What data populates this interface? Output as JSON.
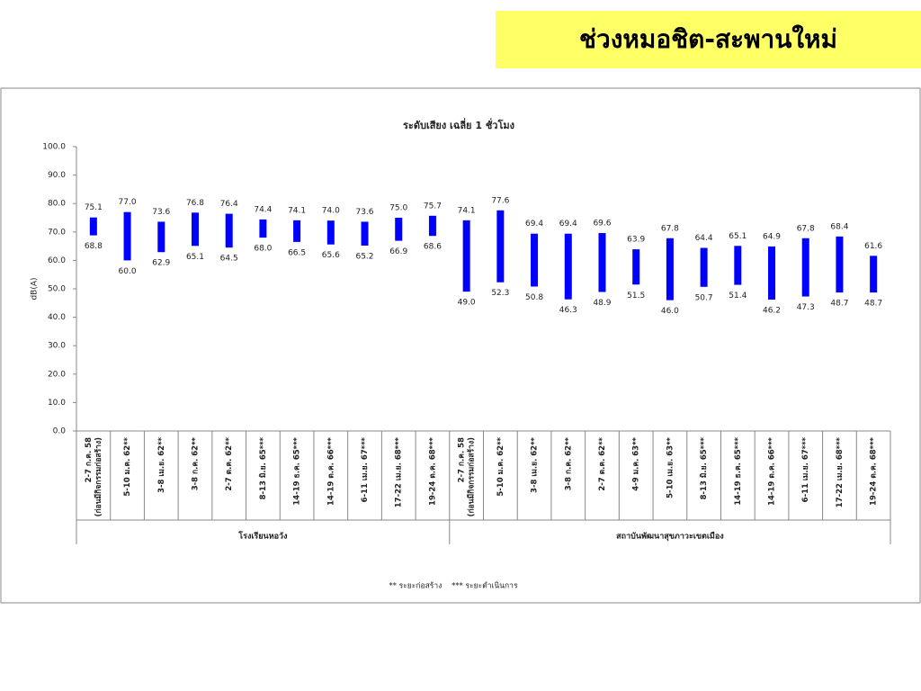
{
  "header": {
    "title": "ช่วงหมอชิต-สะพานใหม่"
  },
  "chart_data": {
    "type": "range_bar",
    "title": "ระดับเสียง เฉลี่ย 1 ชั่วโมง",
    "y_label": "dB(A)",
    "ylim": [
      0,
      100
    ],
    "yticks": [
      {
        "value": 0,
        "label": "0.0"
      },
      {
        "value": 10,
        "label": "10.0"
      },
      {
        "value": 20,
        "label": "20.0"
      },
      {
        "value": 30,
        "label": "30.0"
      },
      {
        "value": 40,
        "label": "40.0"
      },
      {
        "value": 50,
        "label": "50.0"
      },
      {
        "value": 60,
        "label": "60.0"
      },
      {
        "value": 70,
        "label": "70.0"
      },
      {
        "value": 80,
        "label": "80.0"
      },
      {
        "value": 90,
        "label": "90.0"
      },
      {
        "value": 100,
        "label": "100.0"
      }
    ],
    "color": "#0000ff",
    "groups": [
      {
        "label": "โรงเรียนหอวัง",
        "categories": [
          [
            "2-7 ก.ค. 58",
            "(ก่อนมีกิจกรรมก่อสร้าง)"
          ],
          "5-10 ม.ค. 62**",
          "3-8 เม.ย. 62**",
          "3-8 ก.ค. 62**",
          "2-7 ต.ค. 62**",
          "8-13 มิ.ย. 65***",
          "14-19 ธ.ค. 65***",
          "14-19 ต.ค. 66***",
          "6-11 เม.ย. 67***",
          "17-22 เม.ย. 68***",
          "19-24 ต.ค. 68***"
        ]
      },
      {
        "label": "สถาบันพัฒนาสุขภาวะเขตเมือง",
        "categories": [
          [
            "2-7 ก.ค. 58",
            "(ก่อนมีกิจกรรมก่อสร้าง)"
          ],
          "5-10 ม.ค. 62**",
          "3-8 เม.ย. 62**",
          "3-8 ก.ค. 62**",
          "2-7 ต.ค. 62**",
          "4-9 ม.ค. 63**",
          "5-10 เม.ย. 63**",
          "8-13 มิ.ย. 65***",
          "14-19 ธ.ค. 65***",
          "14-19 ต.ค. 66***",
          "6-11 เม.ย. 67***",
          "17-22 เม.ย. 68***",
          "19-24 ต.ค. 68***"
        ]
      }
    ],
    "high": {
      "values": [
        75.1,
        77.0,
        73.6,
        76.8,
        76.4,
        74.4,
        74.1,
        74.0,
        73.6,
        75.0,
        75.7,
        74.1,
        77.6,
        69.4,
        69.4,
        69.6,
        63.9,
        67.8,
        64.4,
        65.1,
        64.9,
        67.8,
        68.4,
        61.6
      ],
      "value_labels": [
        "75.1",
        "77.0",
        "73.6",
        "76.8",
        "76.4",
        "74.4",
        "74.1",
        "74.0",
        "73.6",
        "75.0",
        "75.7",
        "74.1",
        "77.6",
        "69.4",
        "69.4",
        "69.6",
        "63.9",
        "67.8",
        "64.4",
        "65.1",
        "64.9",
        "67.8",
        "68.4",
        "61.6"
      ]
    },
    "low": {
      "values": [
        68.8,
        60.0,
        62.9,
        65.1,
        64.5,
        68.0,
        66.5,
        65.6,
        65.2,
        66.9,
        68.6,
        49.0,
        52.3,
        50.8,
        46.3,
        48.9,
        51.5,
        46.0,
        50.7,
        51.4,
        46.2,
        47.3,
        48.7,
        48.7
      ],
      "value_labels": [
        "68.8",
        "60.0",
        "62.9",
        "65.1",
        "64.5",
        "68.0",
        "66.5",
        "65.6",
        "65.2",
        "66.9",
        "68.6",
        "49.0",
        "52.3",
        "50.8",
        "46.3",
        "48.9",
        "51.5",
        "46.0",
        "50.7",
        "51.4",
        "46.2",
        "47.3",
        "48.7",
        "48.7"
      ]
    },
    "note": "** ระยะก่อสร้าง    *** ระยะดำเนินการ"
  }
}
